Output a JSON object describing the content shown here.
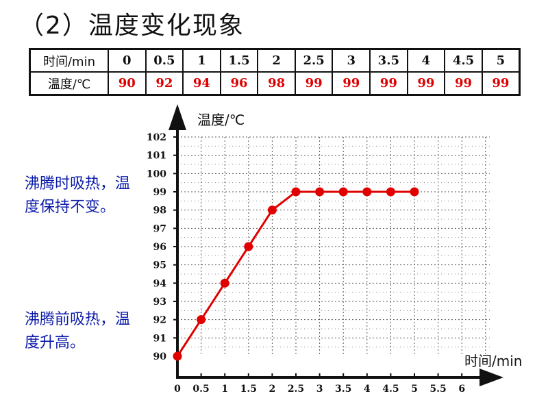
{
  "title": "（2）温度变化现象",
  "table": {
    "time_header": "时间/min",
    "temp_header": "温度/℃",
    "times": [
      "0",
      "0.5",
      "1",
      "1.5",
      "2",
      "2.5",
      "3",
      "3.5",
      "4",
      "4.5",
      "5"
    ],
    "temps": [
      "90",
      "92",
      "94",
      "96",
      "98",
      "99",
      "99",
      "99",
      "99",
      "99",
      "99"
    ]
  },
  "notes": {
    "boiling": "沸腾时吸热，温度保持不变。",
    "before_boiling": "沸腾前吸热，温度升高。"
  },
  "chart_data": {
    "type": "line",
    "xlabel": "时间/min",
    "ylabel": "温度/℃",
    "x_ticks": [
      "0",
      "0.5",
      "1",
      "1.5",
      "2",
      "2.5",
      "3",
      "3.5",
      "4",
      "4.5",
      "5",
      "5.5",
      "6"
    ],
    "y_ticks": [
      "90",
      "91",
      "92",
      "93",
      "94",
      "95",
      "96",
      "97",
      "98",
      "99",
      "100",
      "101",
      "102"
    ],
    "xlim": [
      0,
      6
    ],
    "ylim": [
      90,
      102
    ],
    "grid": true,
    "x": [
      0,
      0.5,
      1,
      1.5,
      2,
      2.5,
      3,
      3.5,
      4,
      4.5,
      5
    ],
    "y": [
      90,
      92,
      94,
      96,
      98,
      99,
      99,
      99,
      99,
      99,
      99
    ],
    "series_color": "#e00000"
  }
}
